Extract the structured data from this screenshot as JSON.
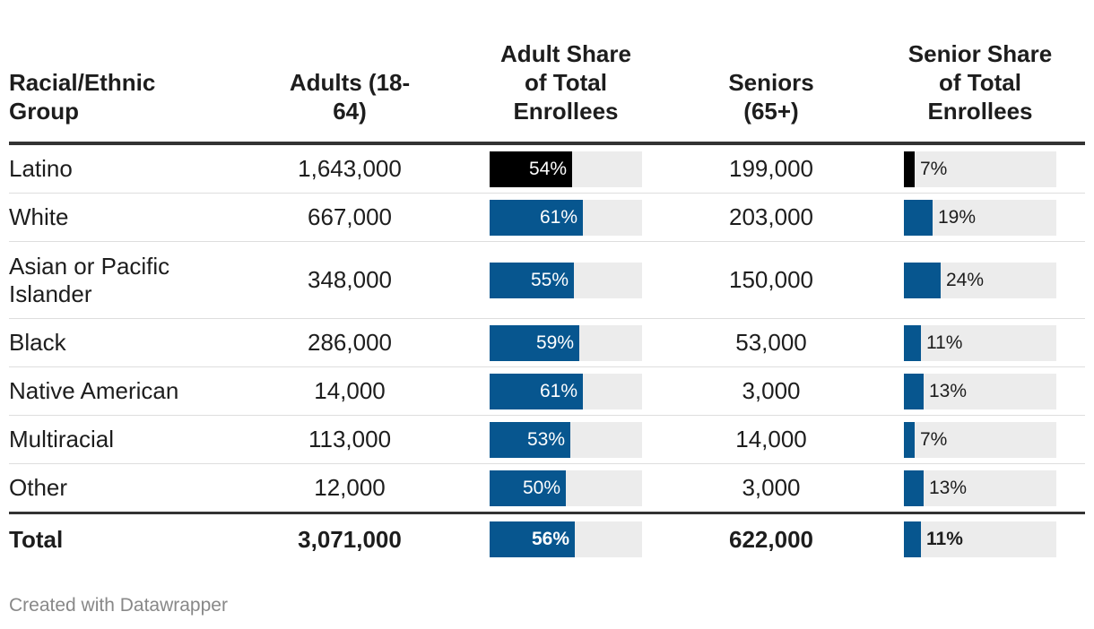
{
  "chart_data": {
    "type": "table",
    "columns": [
      "Racial/Ethnic Group",
      "Adults (18-64)",
      "Adult Share of Total Enrollees",
      "Seniors (65+)",
      "Senior Share of Total Enrollees"
    ],
    "header_lines": [
      [
        "Racial/Ethnic",
        "Group"
      ],
      [
        "Adults (18-",
        "64)"
      ],
      [
        "Adult Share",
        "of Total",
        "Enrollees"
      ],
      [
        "Seniors",
        "(65+)"
      ],
      [
        "Senior Share",
        "of Total",
        "Enrollees"
      ]
    ],
    "rows": [
      {
        "group": "Latino",
        "adults": "1,643,000",
        "adult_share": 54,
        "adult_share_label": "54%",
        "seniors": "199,000",
        "senior_share": 7,
        "senior_share_label": "7%",
        "highlight": true
      },
      {
        "group": "White",
        "adults": "667,000",
        "adult_share": 61,
        "adult_share_label": "61%",
        "seniors": "203,000",
        "senior_share": 19,
        "senior_share_label": "19%"
      },
      {
        "group": "Asian or Pacific Islander",
        "group_lines": [
          "Asian or Pacific",
          "Islander"
        ],
        "adults": "348,000",
        "adult_share": 55,
        "adult_share_label": "55%",
        "seniors": "150,000",
        "senior_share": 24,
        "senior_share_label": "24%"
      },
      {
        "group": "Black",
        "adults": "286,000",
        "adult_share": 59,
        "adult_share_label": "59%",
        "seniors": "53,000",
        "senior_share": 11,
        "senior_share_label": "11%"
      },
      {
        "group": "Native American",
        "adults": "14,000",
        "adult_share": 61,
        "adult_share_label": "61%",
        "seniors": "3,000",
        "senior_share": 13,
        "senior_share_label": "13%"
      },
      {
        "group": "Multiracial",
        "adults": "113,000",
        "adult_share": 53,
        "adult_share_label": "53%",
        "seniors": "14,000",
        "senior_share": 7,
        "senior_share_label": "7%"
      },
      {
        "group": "Other",
        "adults": "12,000",
        "adult_share": 50,
        "adult_share_label": "50%",
        "seniors": "3,000",
        "senior_share": 13,
        "senior_share_label": "13%"
      }
    ],
    "total": {
      "group": "Total",
      "adults": "3,071,000",
      "adult_share": 56,
      "adult_share_label": "56%",
      "seniors": "622,000",
      "senior_share": 11,
      "senior_share_label": "11%"
    },
    "bar_scale_max": 100,
    "colors": {
      "bar": "#07568f",
      "highlight": "#000000",
      "track": "#ececec",
      "rule": "#333333"
    }
  },
  "footer": {
    "credit": "Created with Datawrapper"
  }
}
